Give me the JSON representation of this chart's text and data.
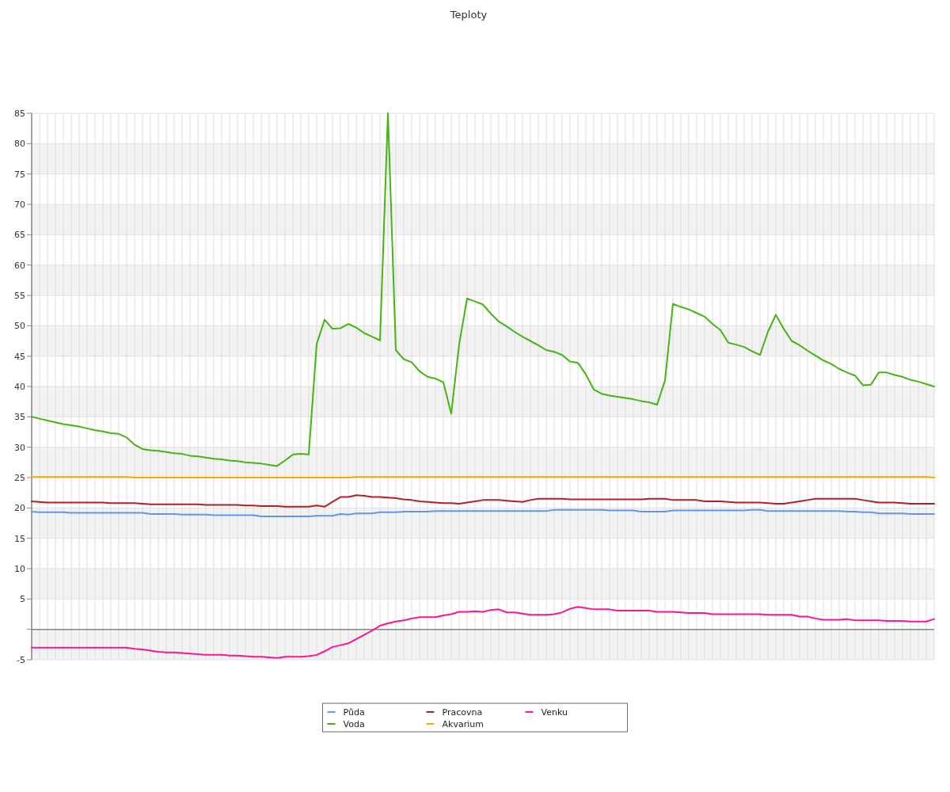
{
  "chart_data": {
    "type": "line",
    "title": "Teploty",
    "categories": [
      null,
      null,
      null,
      null,
      null,
      null,
      null,
      null,
      null,
      null,
      null,
      null,
      null,
      null,
      null,
      null,
      null,
      null,
      null,
      null,
      null,
      null,
      null,
      null,
      null,
      null,
      null,
      null,
      null,
      null,
      null,
      null,
      null,
      null,
      null,
      null,
      null,
      null,
      null,
      null,
      null,
      null,
      null,
      null,
      null,
      null,
      null,
      null,
      null,
      null,
      null,
      null,
      null,
      null,
      null,
      null,
      null,
      null,
      null,
      null,
      null,
      null,
      null,
      null,
      null,
      null,
      null,
      null,
      null,
      null,
      null,
      null,
      null,
      null,
      null,
      null,
      null,
      null,
      null,
      null,
      null,
      null,
      null,
      null,
      null,
      null,
      null,
      null,
      null,
      null,
      null,
      null,
      null,
      null,
      null,
      null,
      null,
      null,
      null,
      null,
      null,
      null,
      null,
      null,
      null,
      null,
      null,
      null,
      null,
      null,
      null,
      null,
      null,
      null,
      null
    ],
    "ylim": [
      -5,
      85
    ],
    "yticks": [
      -5,
      {
        "value": 0,
        "label": null
      },
      5,
      10,
      15,
      20,
      25,
      30,
      35,
      40,
      45,
      50,
      55,
      60,
      65,
      70,
      75,
      80,
      85
    ],
    "grid": true,
    "legend": "bottom",
    "marker": "none",
    "line_style": "solid",
    "series": [
      {
        "name": "Půda",
        "color": "#6495ed",
        "values": [
          19.4,
          19.3,
          19.3,
          19.3,
          19.3,
          19.2,
          19.2,
          19.2,
          19.2,
          19.2,
          19.2,
          19.2,
          19.2,
          19.2,
          19.2,
          19.0,
          19.0,
          19.0,
          19.0,
          18.9,
          18.9,
          18.9,
          18.9,
          18.8,
          18.8,
          18.8,
          18.8,
          18.8,
          18.8,
          18.6,
          18.6,
          18.6,
          18.6,
          18.6,
          18.6,
          18.6,
          18.7,
          18.7,
          18.7,
          19.0,
          18.9,
          19.1,
          19.1,
          19.1,
          19.3,
          19.3,
          19.3,
          19.4,
          19.4,
          19.4,
          19.4,
          19.5,
          19.5,
          19.5,
          19.5,
          19.5,
          19.5,
          19.5,
          19.5,
          19.5,
          19.5,
          19.5,
          19.5,
          19.5,
          19.5,
          19.5,
          19.7,
          19.7,
          19.7,
          19.7,
          19.7,
          19.7,
          19.7,
          19.6,
          19.6,
          19.6,
          19.6,
          19.4,
          19.4,
          19.4,
          19.4,
          19.6,
          19.6,
          19.6,
          19.6,
          19.6,
          19.6,
          19.6,
          19.6,
          19.6,
          19.6,
          19.7,
          19.7,
          19.5,
          19.5,
          19.5,
          19.5,
          19.5,
          19.5,
          19.5,
          19.5,
          19.5,
          19.5,
          19.4,
          19.4,
          19.3,
          19.3,
          19.1,
          19.1,
          19.1,
          19.1,
          19.0,
          19.0,
          19.0,
          19.0
        ]
      },
      {
        "name": "Voda",
        "color": "#44b511",
        "values": [
          35.0,
          34.7,
          34.4,
          34.1,
          33.8,
          33.6,
          33.4,
          33.1,
          32.8,
          32.6,
          32.3,
          32.2,
          31.6,
          30.4,
          29.7,
          29.5,
          29.4,
          29.2,
          29.0,
          28.9,
          28.6,
          28.5,
          28.3,
          28.1,
          28.0,
          27.8,
          27.7,
          27.5,
          27.4,
          27.3,
          27.1,
          26.9,
          27.8,
          28.8,
          28.9,
          28.8,
          47.0,
          51.0,
          49.5,
          49.6,
          50.3,
          49.7,
          48.8,
          48.2,
          47.6,
          85,
          46.0,
          44.5,
          44.0,
          42.5,
          41.6,
          41.3,
          40.7,
          35.5,
          47.0,
          54.5,
          54.0,
          53.5,
          52.0,
          50.7,
          49.9,
          49.0,
          48.2,
          47.5,
          46.8,
          46.0,
          45.7,
          45.2,
          44.1,
          43.9,
          42.0,
          39.5,
          38.8,
          38.5,
          38.3,
          38.1,
          37.9,
          37.6,
          37.4,
          37.0,
          41.0,
          53.6,
          53.1,
          52.7,
          52.1,
          51.5,
          50.3,
          49.3,
          47.2,
          46.9,
          46.5,
          45.8,
          45.2,
          49.0,
          51.8,
          49.5,
          47.5,
          46.8,
          45.9,
          45.1,
          44.3,
          43.7,
          42.9,
          42.3,
          41.8,
          40.2,
          40.3,
          42.3,
          42.3,
          41.9,
          41.6,
          41.1,
          40.8,
          40.4,
          40.0
        ]
      },
      {
        "name": "Pracovna",
        "color": "#b22222",
        "values": [
          21.1,
          21.0,
          20.9,
          20.9,
          20.9,
          20.9,
          20.9,
          20.9,
          20.9,
          20.9,
          20.8,
          20.8,
          20.8,
          20.8,
          20.7,
          20.6,
          20.6,
          20.6,
          20.6,
          20.6,
          20.6,
          20.6,
          20.5,
          20.5,
          20.5,
          20.5,
          20.5,
          20.4,
          20.4,
          20.3,
          20.3,
          20.3,
          20.2,
          20.2,
          20.2,
          20.2,
          20.4,
          20.2,
          21.0,
          21.8,
          21.8,
          22.1,
          22.0,
          21.8,
          21.8,
          21.7,
          21.6,
          21.4,
          21.3,
          21.1,
          21.0,
          20.9,
          20.8,
          20.8,
          20.7,
          20.9,
          21.1,
          21.3,
          21.3,
          21.3,
          21.2,
          21.1,
          21.0,
          21.3,
          21.5,
          21.5,
          21.5,
          21.5,
          21.4,
          21.4,
          21.4,
          21.4,
          21.4,
          21.4,
          21.4,
          21.4,
          21.4,
          21.4,
          21.5,
          21.5,
          21.5,
          21.3,
          21.3,
          21.3,
          21.3,
          21.1,
          21.1,
          21.1,
          21.0,
          20.9,
          20.9,
          20.9,
          20.9,
          20.8,
          20.7,
          20.7,
          20.9,
          21.1,
          21.3,
          21.5,
          21.5,
          21.5,
          21.5,
          21.5,
          21.5,
          21.3,
          21.1,
          20.9,
          20.9,
          20.9,
          20.8,
          20.7,
          20.7,
          20.7,
          20.7
        ]
      },
      {
        "name": "Akvarium",
        "color": "#ffa500",
        "values": [
          25.1,
          25.1,
          25.1,
          25.1,
          25.1,
          25.1,
          25.1,
          25.1,
          25.1,
          25.1,
          25.1,
          25.1,
          25.1,
          25.0,
          25.0,
          25.0,
          25.0,
          25.0,
          25.0,
          25.0,
          25.0,
          25.0,
          25.0,
          25.0,
          25.0,
          25.0,
          25.0,
          25.0,
          25.0,
          25.0,
          25.0,
          25.0,
          25.0,
          25.0,
          25.0,
          25.0,
          25.0,
          25.0,
          25.0,
          25.0,
          25.0,
          25.1,
          25.1,
          25.1,
          25.1,
          25.1,
          25.1,
          25.1,
          25.1,
          25.1,
          25.1,
          25.1,
          25.1,
          25.1,
          25.1,
          25.1,
          25.1,
          25.1,
          25.1,
          25.1,
          25.1,
          25.1,
          25.1,
          25.1,
          25.1,
          25.1,
          25.1,
          25.1,
          25.1,
          25.1,
          25.1,
          25.1,
          25.1,
          25.1,
          25.1,
          25.1,
          25.1,
          25.1,
          25.1,
          25.1,
          25.1,
          25.1,
          25.1,
          25.1,
          25.1,
          25.1,
          25.1,
          25.1,
          25.1,
          25.1,
          25.1,
          25.1,
          25.1,
          25.1,
          25.1,
          25.1,
          25.1,
          25.1,
          25.1,
          25.1,
          25.1,
          25.1,
          25.1,
          25.1,
          25.1,
          25.1,
          25.1,
          25.1,
          25.1,
          25.1,
          25.1,
          25.1,
          25.1,
          25.1,
          25.0
        ]
      },
      {
        "name": "Venku",
        "color": "#ff1493",
        "values": [
          -3.0,
          -3.0,
          -3.0,
          -3.0,
          -3.0,
          -3.0,
          -3.0,
          -3.0,
          -3.0,
          -3.0,
          -3.0,
          -3.0,
          -3.0,
          -3.2,
          -3.3,
          -3.5,
          -3.7,
          -3.8,
          -3.8,
          -3.9,
          -4.0,
          -4.1,
          -4.2,
          -4.2,
          -4.2,
          -4.3,
          -4.3,
          -4.4,
          -4.5,
          -4.5,
          -4.6,
          -4.7,
          -4.5,
          -4.5,
          -4.5,
          -4.4,
          -4.2,
          -3.6,
          -2.9,
          -2.6,
          -2.3,
          -1.6,
          -0.9,
          -0.2,
          0.6,
          1.0,
          1.3,
          1.5,
          1.8,
          2.0,
          2.0,
          2.0,
          2.3,
          2.5,
          2.9,
          2.9,
          3.0,
          2.9,
          3.2,
          3.3,
          2.8,
          2.8,
          2.6,
          2.4,
          2.4,
          2.4,
          2.5,
          2.8,
          3.4,
          3.7,
          3.5,
          3.3,
          3.3,
          3.3,
          3.1,
          3.1,
          3.1,
          3.1,
          3.1,
          2.9,
          2.9,
          2.9,
          2.8,
          2.7,
          2.7,
          2.7,
          2.5,
          2.5,
          2.5,
          2.5,
          2.5,
          2.5,
          2.5,
          2.4,
          2.4,
          2.4,
          2.4,
          2.1,
          2.1,
          1.8,
          1.6,
          1.6,
          1.6,
          1.7,
          1.5,
          1.5,
          1.5,
          1.5,
          1.4,
          1.4,
          1.4,
          1.3,
          1.3,
          1.3,
          1.7
        ]
      }
    ]
  }
}
